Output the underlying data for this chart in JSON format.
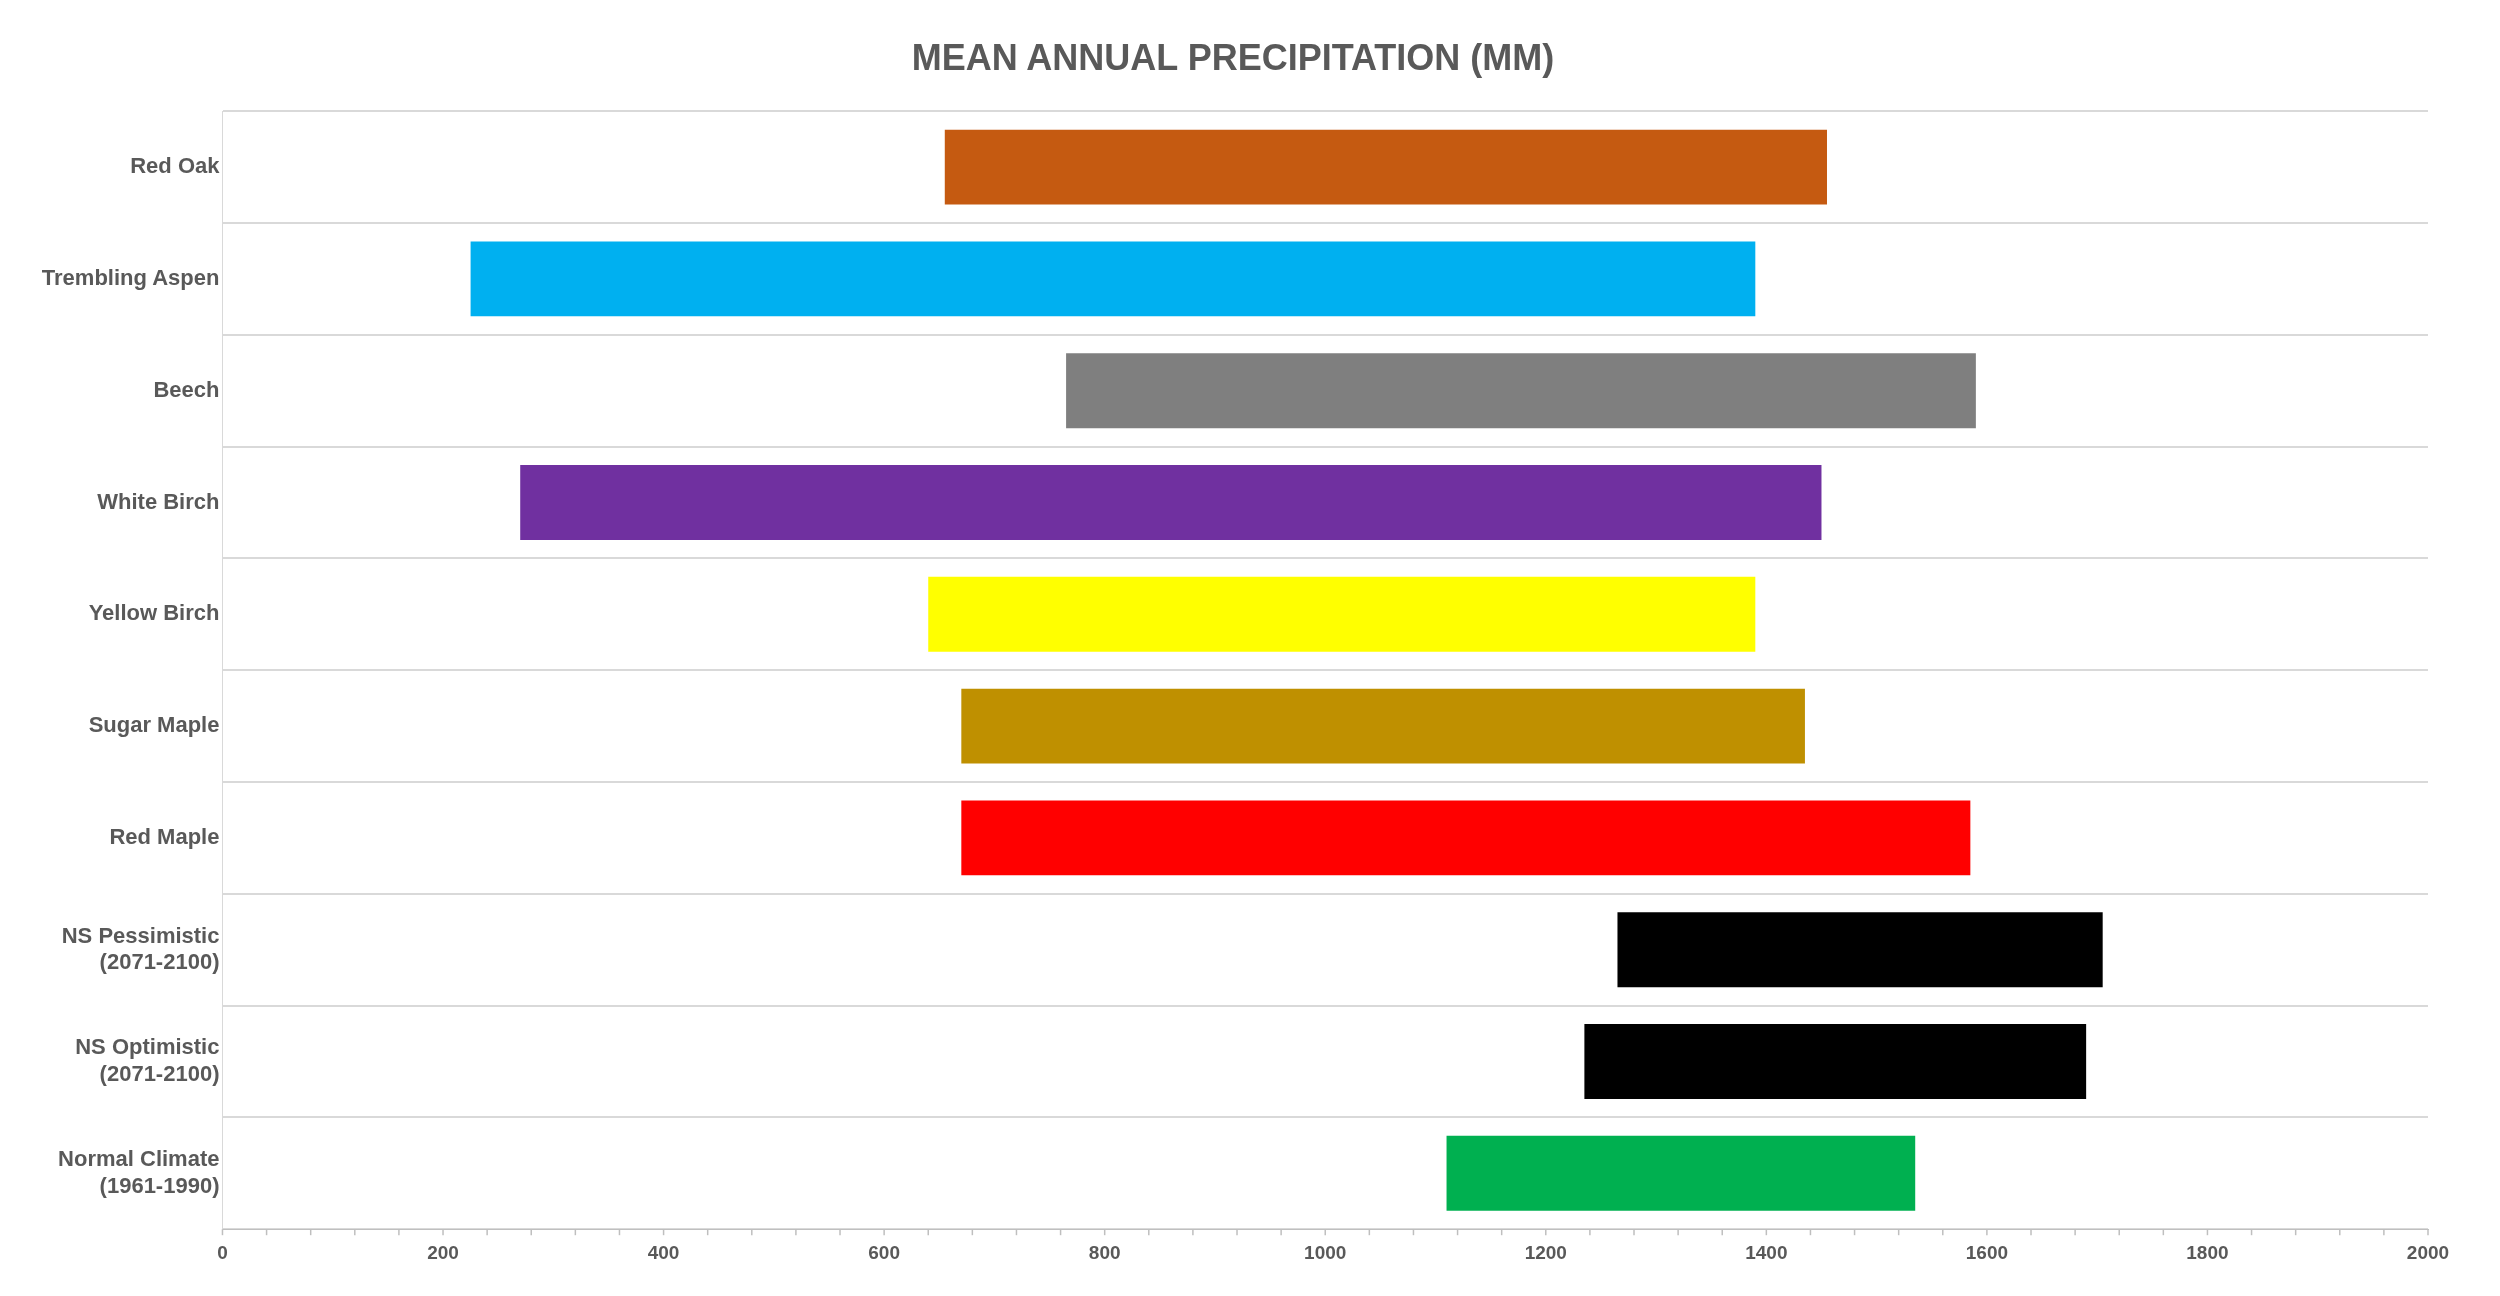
{
  "chart_data": {
    "type": "bar",
    "orientation": "horizontal",
    "title": "MEAN ANNUAL PRECIPITATION (MM)",
    "categories": [
      "Red Oak",
      "Trembling Aspen",
      "Beech",
      "White Birch",
      "Yellow Birch",
      "Sugar Maple",
      "Red Maple",
      "NS Pessimistic (2071-2100)",
      "NS Optimistic (2071-2100)",
      "Normal Climate (1961-1990)"
    ],
    "base": [
      655,
      225,
      765,
      270,
      640,
      670,
      670,
      1265,
      1235,
      1110
    ],
    "values": [
      800,
      1165,
      825,
      1180,
      750,
      765,
      915,
      440,
      455,
      425
    ],
    "colors": [
      "#c55a11",
      "#00b0f0",
      "#7f7f7f",
      "#7030a0",
      "#ffff00",
      "#bf9000",
      "#ff0000",
      "#000000",
      "#000000",
      "#00b050"
    ],
    "xlim": [
      0,
      2000
    ],
    "xticks": [
      0,
      200,
      400,
      600,
      800,
      1000,
      1200,
      1400,
      1600,
      1800,
      2000
    ],
    "grid": "y",
    "legend": false
  }
}
